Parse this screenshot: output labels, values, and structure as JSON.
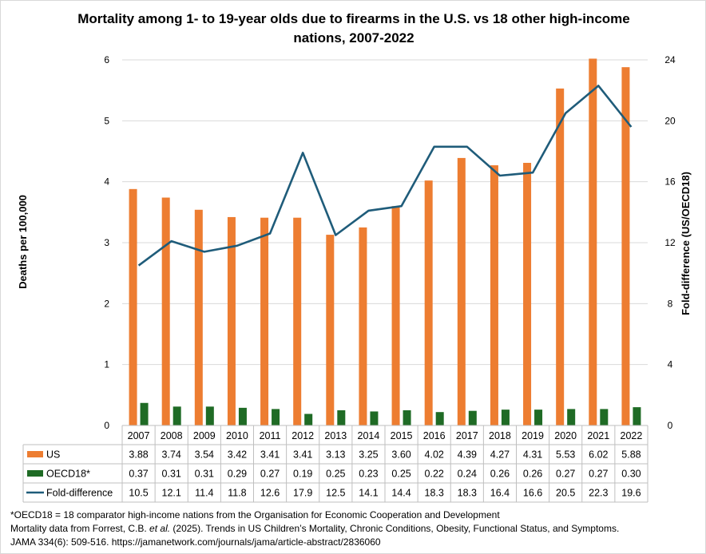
{
  "colors": {
    "us": "#ED7D31",
    "oecd": "#1F6B25",
    "fold": "#1F5C7A",
    "grid": "#d9d9d9",
    "table_border": "#bfbfbf"
  },
  "chart_data": {
    "type": "bar",
    "title_line1": "Mortality among 1- to 19-year olds due to firearms in the U.S. vs 18 other high-income",
    "title_line2": "nations, 2007-2022",
    "ylabel": "Deaths per 100,000",
    "y2label": "Fold-difference (US/OECD18)",
    "ylim": [
      0,
      6
    ],
    "y2lim": [
      0,
      24
    ],
    "yticks": [
      "0",
      "1",
      "2",
      "3",
      "4",
      "5",
      "6"
    ],
    "y2ticks": [
      "0",
      "4",
      "8",
      "12",
      "16",
      "20",
      "24"
    ],
    "categories": [
      "2007",
      "2008",
      "2009",
      "2010",
      "2011",
      "2012",
      "2013",
      "2014",
      "2015",
      "2016",
      "2017",
      "2018",
      "2019",
      "2020",
      "2021",
      "2022"
    ],
    "series": [
      {
        "name": "US",
        "kind": "bar",
        "axis": "left",
        "values": [
          3.88,
          3.74,
          3.54,
          3.42,
          3.41,
          3.41,
          3.13,
          3.25,
          3.6,
          4.02,
          4.39,
          4.27,
          4.31,
          5.53,
          6.02,
          5.88
        ],
        "labels": [
          "3.88",
          "3.74",
          "3.54",
          "3.42",
          "3.41",
          "3.41",
          "3.13",
          "3.25",
          "3.60",
          "4.02",
          "4.39",
          "4.27",
          "4.31",
          "5.53",
          "6.02",
          "5.88"
        ]
      },
      {
        "name": "OECD18*",
        "kind": "bar",
        "axis": "left",
        "values": [
          0.37,
          0.31,
          0.31,
          0.29,
          0.27,
          0.19,
          0.25,
          0.23,
          0.25,
          0.22,
          0.24,
          0.26,
          0.26,
          0.27,
          0.27,
          0.3
        ],
        "labels": [
          "0.37",
          "0.31",
          "0.31",
          "0.29",
          "0.27",
          "0.19",
          "0.25",
          "0.23",
          "0.25",
          "0.22",
          "0.24",
          "0.26",
          "0.26",
          "0.27",
          "0.27",
          "0.30"
        ]
      },
      {
        "name": "Fold-difference",
        "kind": "line",
        "axis": "right",
        "values": [
          10.5,
          12.1,
          11.4,
          11.8,
          12.6,
          17.9,
          12.5,
          14.1,
          14.4,
          18.3,
          18.3,
          16.4,
          16.6,
          20.5,
          22.3,
          19.6
        ],
        "labels": [
          "10.5",
          "12.1",
          "11.4",
          "11.8",
          "12.6",
          "17.9",
          "12.5",
          "14.1",
          "14.4",
          "18.3",
          "18.3",
          "16.4",
          "16.6",
          "20.5",
          "22.3",
          "19.6"
        ]
      }
    ]
  },
  "footnote": {
    "line1": "*OECD18 = 18 comparator high-income nations from the Organisation for Economic Cooperation and Development",
    "line2_prefix": "Mortality data from Forrest, C.B. ",
    "line2_italic": "et al.",
    "line2_suffix": " (2025). Trends in US Children’s Mortality, Chronic Conditions, Obesity, Functional Status, and Symptoms.",
    "line3": "JAMA 334(6): 509-516.  https://jamanetwork.com/journals/jama/article-abstract/2836060"
  }
}
